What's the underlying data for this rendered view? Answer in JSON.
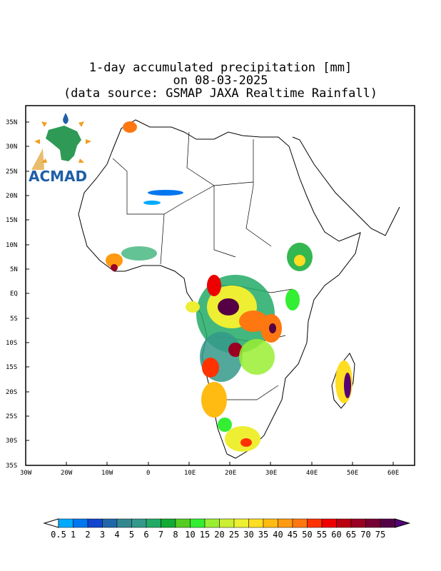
{
  "title": {
    "line1": "1-day accumulated precipitation [mm]",
    "line2": "on 08-03-2025",
    "line3": "(data source: GSMAP JAXA Realtime Rainfall)"
  },
  "logo": {
    "text": "ACMAD",
    "icon": "africa-logo-icon"
  },
  "axes": {
    "x_ticks": [
      "30W",
      "20W",
      "10W",
      "0",
      "10E",
      "20E",
      "30E",
      "40E",
      "50E",
      "60E"
    ],
    "y_ticks": [
      "35N",
      "30N",
      "25N",
      "20N",
      "15N",
      "10N",
      "5N",
      "EQ",
      "5S",
      "10S",
      "15S",
      "20S",
      "25S",
      "30S",
      "35S"
    ],
    "lon_range": [
      -30,
      65
    ],
    "lat_range": [
      -35,
      38
    ]
  },
  "colorbar": {
    "labels": [
      "0.5",
      "1",
      "2",
      "3",
      "4",
      "5",
      "6",
      "7",
      "8",
      "10",
      "15",
      "20",
      "25",
      "30",
      "35",
      "40",
      "45",
      "50",
      "55",
      "60",
      "65",
      "70",
      "75"
    ],
    "colors": [
      "#00aaff",
      "#0077ee",
      "#1144cc",
      "#2266aa",
      "#33888f",
      "#33998a",
      "#22aa66",
      "#11aa33",
      "#55cc22",
      "#33ee33",
      "#99ee33",
      "#ccee33",
      "#eeee33",
      "#ffdd22",
      "#ffbb11",
      "#ff9911",
      "#ff7711",
      "#ff3300",
      "#ee0000",
      "#bb0011",
      "#990022",
      "#770033",
      "#550044"
    ],
    "under_color": "#ffffff",
    "over_color": "#550077"
  }
}
